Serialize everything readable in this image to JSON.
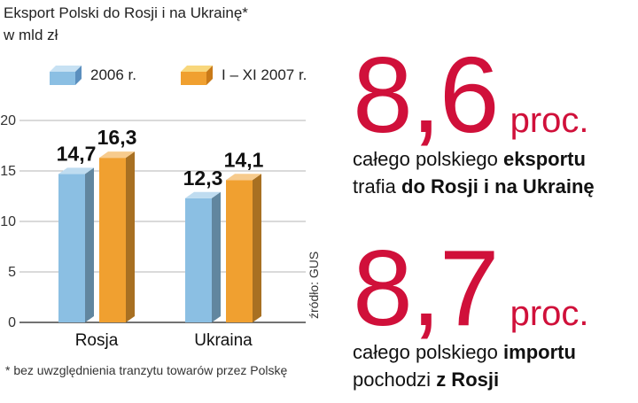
{
  "chart_data": {
    "type": "bar",
    "title": "Eksport Polski do Rosji i na Ukrainę*",
    "subtitle": "w mld zł",
    "categories": [
      "Rosja",
      "Ukraina"
    ],
    "series": [
      {
        "name": "2006 r.",
        "values": [
          14.7,
          12.3
        ],
        "labels": [
          "14,7",
          "12,3"
        ],
        "color": "#8bbfe3"
      },
      {
        "name": "I – XI 2007 r.",
        "values": [
          16.3,
          14.1
        ],
        "labels": [
          "16,3",
          "14,1"
        ],
        "color": "#f0a030"
      }
    ],
    "ylim": [
      0,
      20
    ],
    "yticks": [
      0,
      5,
      10,
      15,
      20
    ],
    "grid": true,
    "legend_position": "top",
    "source": "źródło: GUS",
    "footnote": "* bez uwzględnienia tranzytu towarów przez Polskę"
  },
  "stats": [
    {
      "number": "8,6",
      "unit": "proc.",
      "line1_prefix": "całego polskiego ",
      "line1_bold": "eksportu",
      "line2_prefix": "trafia ",
      "line2_bold": "do Rosji i na Ukrainę"
    },
    {
      "number": "8,7",
      "unit": "proc.",
      "line1_prefix": "całego polskiego ",
      "line1_bold": "importu",
      "line2_prefix": "pochodzi ",
      "line2_bold": "z Rosji"
    }
  ],
  "colors": {
    "accent": "#d0103a",
    "blue_bar": "#8bbfe3",
    "orange_bar": "#f0a030",
    "grid": "#b5b5b5"
  }
}
